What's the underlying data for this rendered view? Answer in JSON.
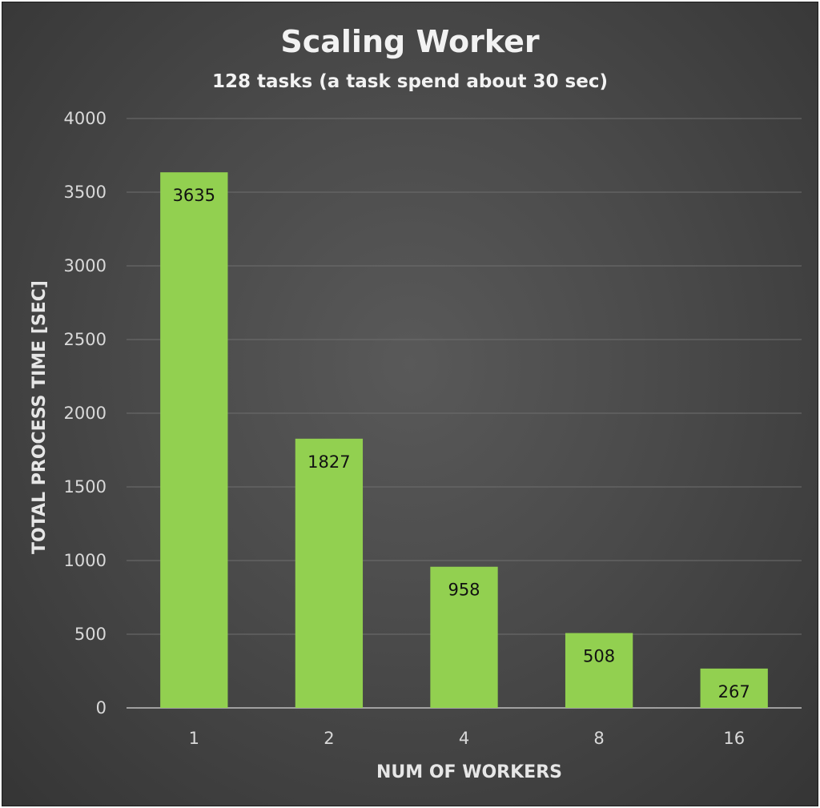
{
  "colors": {
    "background": "#4a4a4a",
    "bar": "#92d050",
    "text": "#f2f2f2",
    "data_label": "#111111"
  },
  "chart_data": {
    "type": "bar",
    "title": "Scaling Worker",
    "subtitle": "128 tasks (a task spend about 30 sec)",
    "xlabel": "NUM OF WORKERS",
    "ylabel": "TOTAL PROCESS TIME [SEC]",
    "categories": [
      "1",
      "2",
      "4",
      "8",
      "16"
    ],
    "values": [
      3635,
      1827,
      958,
      508,
      267
    ],
    "data_labels": [
      "3635",
      "1827",
      "958",
      "508",
      "267"
    ],
    "ylim": [
      0,
      4000
    ],
    "yticks": [
      "0",
      "500",
      "1000",
      "1500",
      "2000",
      "2500",
      "3000",
      "3500",
      "4000"
    ],
    "grid": true,
    "legend": "none"
  }
}
